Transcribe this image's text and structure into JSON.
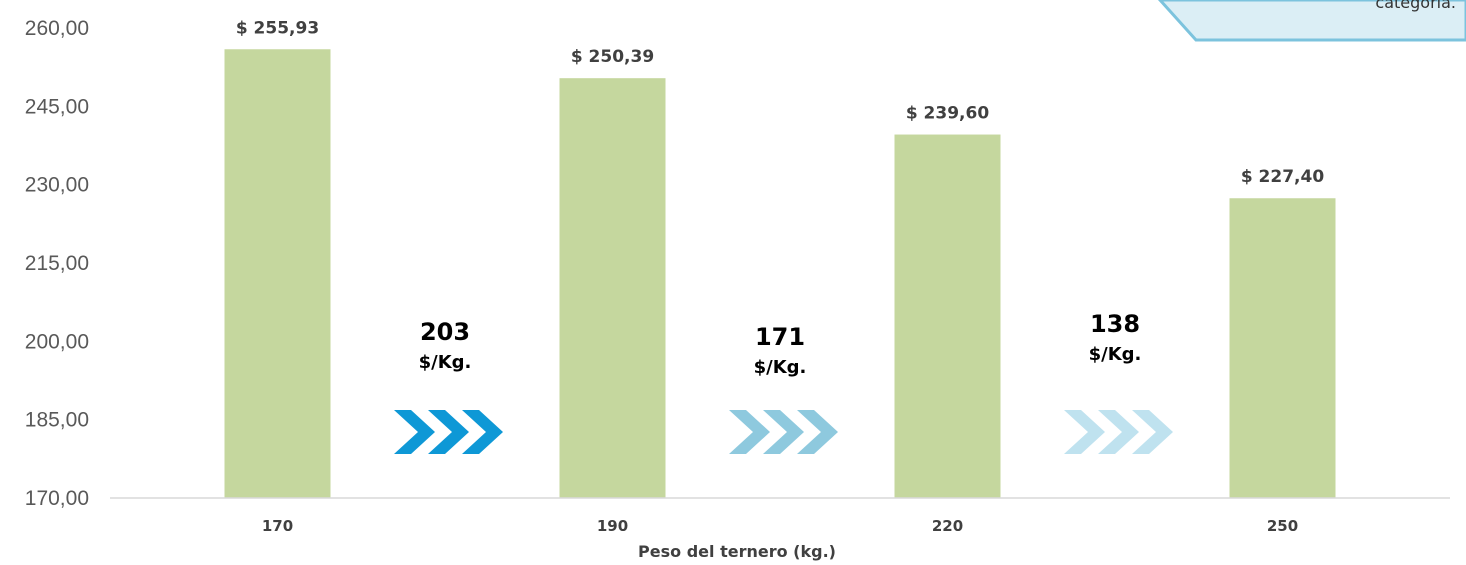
{
  "chart_data": {
    "type": "bar",
    "title": "",
    "xlabel": "Peso del ternero (kg.)",
    "ylabel": "",
    "categories": [
      "170",
      "190",
      "220",
      "250"
    ],
    "values": [
      255.93,
      250.39,
      239.6,
      227.4
    ],
    "value_labels": [
      "$ 255,93",
      "$ 250,39",
      "$ 239,60",
      "$ 227,40"
    ],
    "ylim": [
      170,
      260
    ],
    "yticks": [
      170,
      185,
      200,
      215,
      230,
      245,
      260
    ],
    "ytick_labels": [
      "170,00",
      "185,00",
      "200,00",
      "215,00",
      "230,00",
      "245,00",
      "260,00"
    ],
    "bar_color": "#c5d79e",
    "grid": false,
    "legend": "none",
    "annotations": [
      {
        "value": "203",
        "unit": "$/Kg.",
        "arrow_color": "#0e98d6"
      },
      {
        "value": "171",
        "unit": "$/Kg.",
        "arrow_color": "#8ec9de"
      },
      {
        "value": "138",
        "unit": "$/Kg.",
        "arrow_color": "#bfe2ef"
      }
    ],
    "callout": {
      "text": "categoría.",
      "fill": "#dbeef5",
      "border": "#7cc3dd",
      "position": "top-right"
    }
  }
}
